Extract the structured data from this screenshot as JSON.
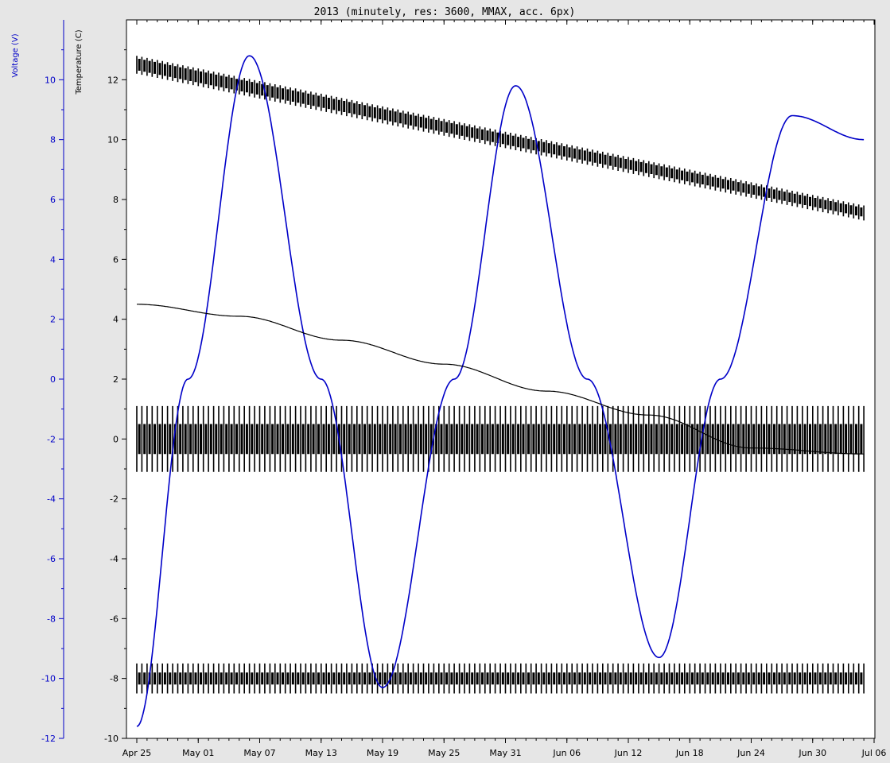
{
  "chart_data": {
    "type": "line",
    "title": "2013 (minutely, res: 3600, MMAX, acc. 6px)",
    "x_axis": {
      "ticks": [
        "Apr 25",
        "May 01",
        "May 07",
        "May 13",
        "May 19",
        "May 25",
        "May 31",
        "Jun 06",
        "Jun 12",
        "Jun 18",
        "Jun 24",
        "Jun 30",
        "Jul 06"
      ],
      "range_days": [
        0,
        72
      ]
    },
    "y_axes": [
      {
        "id": "voltage",
        "label": "Voltage (V)",
        "color": "#0000c8",
        "ylim": [
          -12,
          12
        ],
        "ticks": [
          10,
          8,
          6,
          4,
          2,
          0,
          -2,
          -4,
          -6,
          -8,
          -10,
          -12
        ]
      },
      {
        "id": "temperature",
        "label": "Temperature (C)",
        "color": "#000000",
        "ylim": [
          -10,
          14
        ],
        "ticks": [
          12,
          10,
          8,
          6,
          4,
          2,
          0,
          -2,
          -4,
          -6,
          -8,
          -10
        ]
      }
    ],
    "series": [
      {
        "axis": "voltage",
        "kind": "smooth",
        "color": "#0000c8",
        "x": [
          0,
          5,
          11,
          18,
          24,
          31,
          37,
          44,
          51,
          57,
          64,
          71
        ],
        "values": [
          -11.6,
          0,
          10.8,
          0,
          -10.3,
          0,
          9.8,
          0,
          -9.3,
          0,
          8.8,
          8.0
        ]
      },
      {
        "axis": "temperature",
        "kind": "smooth",
        "color": "#000000",
        "x": [
          0,
          10,
          20,
          30,
          40,
          50,
          60,
          71
        ],
        "values": [
          4.5,
          4.1,
          3.3,
          2.5,
          1.6,
          0.8,
          -0.3,
          -0.5
        ]
      },
      {
        "axis": "temperature",
        "kind": "band",
        "color": "#000000",
        "x": [
          0,
          71
        ],
        "upper": [
          12.8,
          7.8
        ],
        "lower": [
          12.2,
          7.3
        ],
        "inner_upper": [
          12.7,
          7.7
        ],
        "inner_lower": [
          12.3,
          7.4
        ]
      },
      {
        "axis": "temperature",
        "kind": "band",
        "color": "#000000",
        "x": [
          0,
          71
        ],
        "upper": [
          1.1,
          1.1
        ],
        "lower": [
          -1.1,
          -1.1
        ],
        "inner_upper": [
          0.5,
          0.5
        ],
        "inner_lower": [
          -0.5,
          -0.5
        ]
      },
      {
        "axis": "temperature",
        "kind": "band",
        "color": "#000000",
        "x": [
          0,
          71
        ],
        "upper": [
          -7.5,
          -7.5
        ],
        "lower": [
          -8.5,
          -8.5
        ],
        "inner_upper": [
          -7.8,
          -7.8
        ],
        "inner_lower": [
          -8.2,
          -8.2
        ]
      }
    ]
  }
}
